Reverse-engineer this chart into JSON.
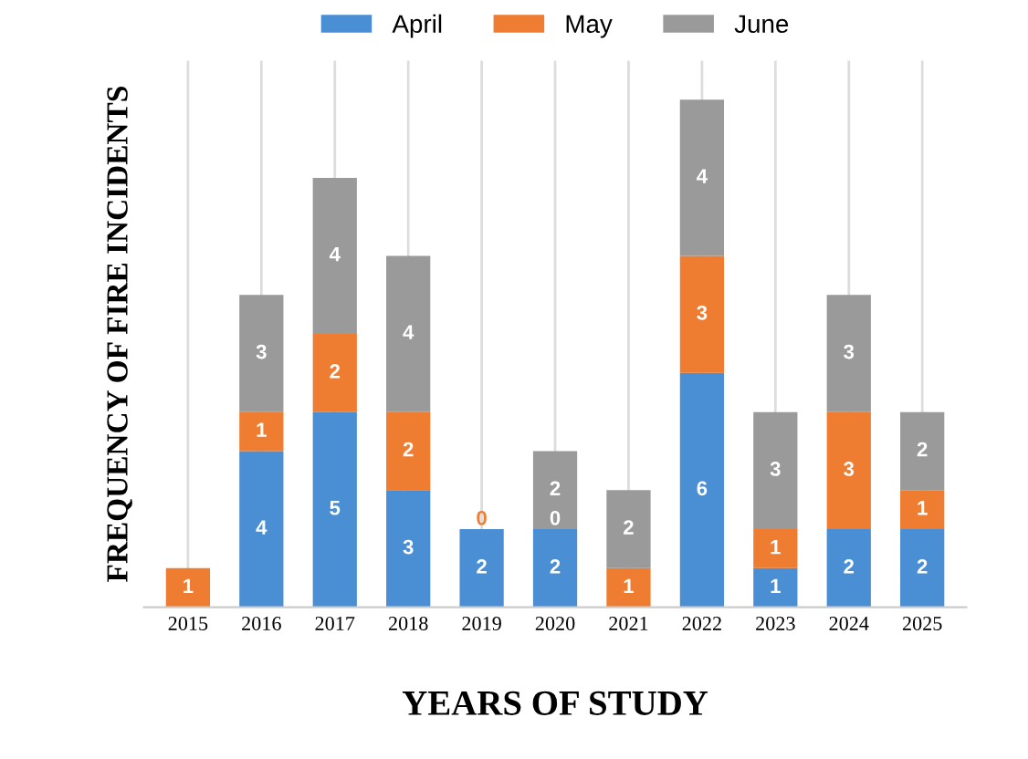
{
  "chart_data": {
    "type": "bar",
    "stacked": true,
    "xlabel": "YEARS OF STUDY",
    "ylabel": "FREQUENCY OF FIRE INCIDENTS",
    "categories": [
      "2015",
      "2016",
      "2017",
      "2018",
      "2019",
      "2020",
      "2021",
      "2022",
      "2023",
      "2024",
      "2025"
    ],
    "series": [
      {
        "name": "April",
        "color": "#4a8fd4",
        "values": [
          0,
          4,
          5,
          3,
          2,
          2,
          0,
          6,
          1,
          2,
          2
        ],
        "value_labels": [
          null,
          "4",
          "5",
          "3",
          "2",
          "2",
          null,
          "6",
          "1",
          "2",
          "2"
        ]
      },
      {
        "name": "May",
        "color": "#ee7d31",
        "values": [
          1,
          1,
          2,
          2,
          0,
          0,
          1,
          3,
          1,
          3,
          1
        ],
        "value_labels": [
          "1",
          "1",
          "2",
          "2",
          "0",
          "0",
          "1",
          "3",
          "1",
          "3",
          "1"
        ]
      },
      {
        "name": "June",
        "color": "#9a9a9a",
        "values": [
          0,
          3,
          4,
          4,
          0,
          2,
          2,
          4,
          3,
          3,
          2
        ],
        "value_labels": [
          null,
          "3",
          "4",
          "4",
          null,
          "2",
          "2",
          "4",
          "3",
          "3",
          "2"
        ]
      }
    ],
    "ylim": [
      0,
      14
    ],
    "tick_labels": "x",
    "grid": "x",
    "legend": "top"
  }
}
